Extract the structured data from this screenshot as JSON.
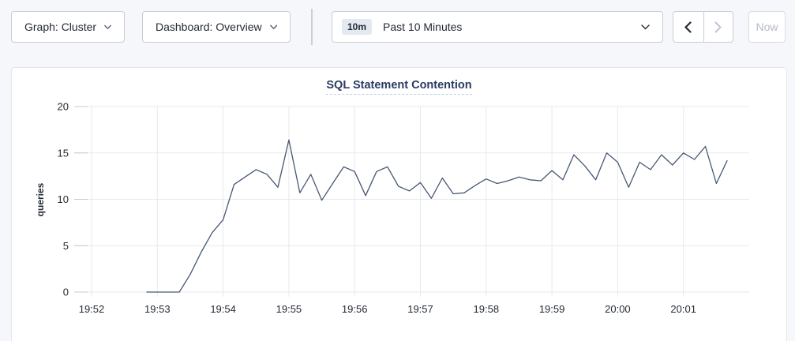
{
  "toolbar": {
    "graph_selector": {
      "label": "Graph: Cluster"
    },
    "dashboard_selector": {
      "label": "Dashboard: Overview"
    },
    "time_picker": {
      "badge": "10m",
      "label": "Past 10 Minutes"
    },
    "now_button": {
      "label": "Now"
    }
  },
  "chart": {
    "title": "SQL Statement Contention",
    "ylabel": "queries"
  },
  "chart_data": {
    "type": "line",
    "title": "SQL Statement Contention",
    "xlabel": "",
    "ylabel": "queries",
    "ylim": [
      0,
      20
    ],
    "yticks": [
      0,
      5,
      10,
      15,
      20
    ],
    "xticks": [
      "19:52",
      "19:53",
      "19:54",
      "19:55",
      "19:56",
      "19:57",
      "19:58",
      "19:59",
      "20:00",
      "20:01"
    ],
    "grid": true,
    "legend": "none",
    "line_color": "#475872",
    "grid_color": "#e8e9ed",
    "tick_color": "#c4c8d1",
    "text_color": "#242a35",
    "series": [
      {
        "name": "queries",
        "x": [
          "19:52:50",
          "19:53:00",
          "19:53:10",
          "19:53:20",
          "19:53:30",
          "19:53:40",
          "19:53:50",
          "19:54:00",
          "19:54:10",
          "19:54:20",
          "19:54:30",
          "19:54:40",
          "19:54:50",
          "19:55:00",
          "19:55:10",
          "19:55:20",
          "19:55:30",
          "19:55:40",
          "19:55:50",
          "19:56:00",
          "19:56:10",
          "19:56:20",
          "19:56:30",
          "19:56:40",
          "19:56:50",
          "19:57:00",
          "19:57:10",
          "19:57:20",
          "19:57:30",
          "19:57:40",
          "19:57:50",
          "19:58:00",
          "19:58:10",
          "19:58:20",
          "19:58:30",
          "19:58:40",
          "19:58:50",
          "19:59:00",
          "19:59:10",
          "19:59:20",
          "19:59:30",
          "19:59:40",
          "19:59:50",
          "20:00:00",
          "20:00:10",
          "20:00:20",
          "20:00:30",
          "20:00:40",
          "20:00:50",
          "20:01:00",
          "20:01:10",
          "20:01:20",
          "20:01:30",
          "20:01:40"
        ],
        "values": [
          0,
          0,
          0,
          0,
          1.9,
          4.3,
          6.4,
          7.8,
          11.6,
          12.4,
          13.2,
          12.7,
          11.3,
          16.4,
          10.7,
          12.7,
          9.9,
          11.7,
          13.5,
          13.0,
          10.4,
          13.0,
          13.5,
          11.4,
          10.9,
          11.8,
          10.1,
          12.3,
          10.6,
          10.7,
          11.5,
          12.2,
          11.7,
          12.0,
          12.4,
          12.1,
          12.0,
          13.1,
          12.1,
          14.8,
          13.6,
          12.1,
          15.0,
          14.0,
          11.3,
          14.0,
          13.2,
          14.8,
          13.7,
          15.0,
          14.3,
          15.7,
          11.7,
          14.2
        ]
      }
    ]
  }
}
